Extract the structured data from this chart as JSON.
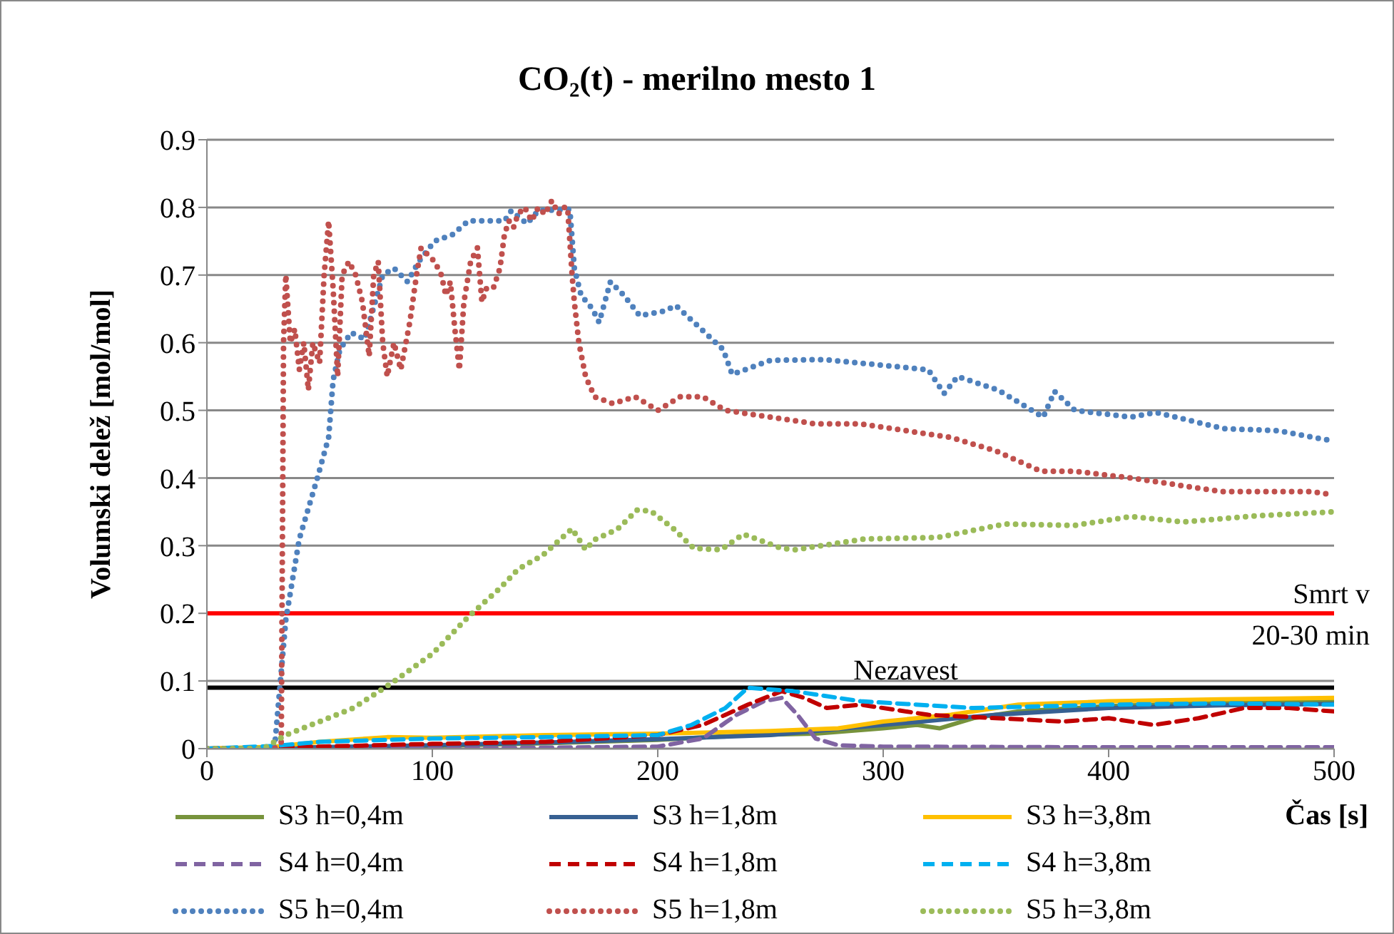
{
  "chart_data": {
    "type": "line",
    "title": "CO₂(t) - merilno mesto 1",
    "xlabel": "Čas [s]",
    "ylabel": "Volumski delež [mol/mol]",
    "xlim": [
      0,
      500
    ],
    "xticks": [
      0,
      100,
      200,
      300,
      400,
      500
    ],
    "ylim": [
      0,
      0.9
    ],
    "yticks": [
      0,
      0.1,
      0.2,
      0.3,
      0.4,
      0.5,
      0.6,
      0.7,
      0.8,
      0.9
    ],
    "grid": "y",
    "legend": "bottom",
    "marker": "none",
    "ref_lines": [
      {
        "axis": "y",
        "value": 0.2,
        "label": "Smrt v 20-30 min",
        "color": "#ff0000"
      },
      {
        "axis": "y",
        "value": 0.09,
        "label": "Nezavest",
        "color": "#000000"
      }
    ],
    "series": [
      {
        "name": "S3 h=0,4m",
        "color": "#77933c",
        "line_style": "solid",
        "x": [
          0,
          50,
          100,
          150,
          200,
          240,
          270,
          300,
          315,
          325,
          340,
          360,
          400,
          450,
          500
        ],
        "values": [
          0,
          0.002,
          0.004,
          0.008,
          0.013,
          0.02,
          0.022,
          0.03,
          0.035,
          0.03,
          0.045,
          0.055,
          0.063,
          0.068,
          0.07
        ]
      },
      {
        "name": "S3 h=1,8m",
        "color": "#376092",
        "line_style": "solid",
        "x": [
          0,
          50,
          100,
          150,
          200,
          250,
          300,
          350,
          400,
          450,
          500
        ],
        "values": [
          0,
          0.002,
          0.005,
          0.009,
          0.014,
          0.02,
          0.035,
          0.05,
          0.06,
          0.064,
          0.066
        ]
      },
      {
        "name": "S3 h=3,8m",
        "color": "#ffc000",
        "line_style": "solid",
        "x": [
          0,
          30,
          50,
          80,
          100,
          150,
          200,
          250,
          280,
          300,
          330,
          360,
          400,
          450,
          500
        ],
        "values": [
          0,
          0.003,
          0.01,
          0.017,
          0.016,
          0.02,
          0.022,
          0.026,
          0.03,
          0.04,
          0.05,
          0.065,
          0.07,
          0.073,
          0.075
        ]
      },
      {
        "name": "S4 h=0,4m",
        "color": "#8064a2",
        "line_style": "dashed",
        "x": [
          0,
          100,
          200,
          220,
          235,
          247,
          255,
          262,
          270,
          280,
          300,
          400,
          500
        ],
        "values": [
          0,
          0,
          0.003,
          0.015,
          0.05,
          0.07,
          0.075,
          0.05,
          0.015,
          0.005,
          0.003,
          0.002,
          0.002
        ]
      },
      {
        "name": "S4 h=1,8m",
        "color": "#c00000",
        "line_style": "dashed",
        "x": [
          0,
          50,
          100,
          150,
          200,
          220,
          240,
          255,
          265,
          275,
          290,
          320,
          350,
          380,
          400,
          420,
          440,
          460,
          480,
          500
        ],
        "values": [
          0,
          0.003,
          0.007,
          0.01,
          0.02,
          0.035,
          0.065,
          0.085,
          0.075,
          0.06,
          0.065,
          0.05,
          0.045,
          0.04,
          0.045,
          0.035,
          0.045,
          0.06,
          0.06,
          0.055
        ]
      },
      {
        "name": "S4 h=3,8m",
        "color": "#00b0f0",
        "line_style": "dashed",
        "x": [
          0,
          30,
          50,
          100,
          150,
          200,
          215,
          230,
          240,
          260,
          290,
          340,
          400,
          450,
          500
        ],
        "values": [
          0,
          0.004,
          0.01,
          0.015,
          0.017,
          0.02,
          0.035,
          0.06,
          0.09,
          0.085,
          0.07,
          0.06,
          0.065,
          0.067,
          0.065
        ]
      },
      {
        "name": "S5 h=0,4m",
        "color": "#4f81bd",
        "line_style": "dotted",
        "x": [
          0,
          30,
          35,
          41,
          49,
          54,
          56,
          59,
          64,
          70,
          78,
          83,
          89,
          94,
          101,
          109,
          116,
          132,
          135,
          142,
          147,
          161,
          163,
          166,
          171,
          174,
          179,
          185,
          192,
          203,
          208,
          229,
          233,
          250,
          274,
          320,
          327,
          333,
          351,
          371,
          376,
          385,
          410,
          421,
          451,
          475,
          494,
          500
        ],
        "values": [
          0,
          0,
          0.19,
          0.31,
          0.4,
          0.46,
          0.545,
          0.59,
          0.615,
          0.605,
          0.7,
          0.71,
          0.69,
          0.72,
          0.75,
          0.76,
          0.78,
          0.78,
          0.795,
          0.776,
          0.795,
          0.797,
          0.71,
          0.67,
          0.65,
          0.63,
          0.69,
          0.67,
          0.64,
          0.647,
          0.655,
          0.59,
          0.553,
          0.574,
          0.575,
          0.56,
          0.525,
          0.55,
          0.53,
          0.49,
          0.528,
          0.5,
          0.49,
          0.497,
          0.473,
          0.47,
          0.458,
          0.455
        ]
      },
      {
        "name": "S5 h=1,8m",
        "color": "#c0504d",
        "line_style": "dotted",
        "x": [
          0,
          20,
          30,
          33,
          34,
          35,
          37,
          39,
          41,
          43,
          45,
          47,
          50,
          52,
          54,
          56,
          58,
          60,
          63,
          66,
          69,
          72,
          74,
          76,
          78,
          80,
          83,
          86,
          90,
          93,
          95,
          98,
          101,
          104,
          106,
          108,
          110,
          112,
          114,
          117,
          120,
          122,
          124,
          127,
          130,
          132,
          134,
          136,
          138,
          141,
          144,
          147,
          150,
          153,
          156,
          158,
          160,
          161,
          162,
          163,
          165,
          168,
          172,
          180,
          190,
          200,
          210,
          220,
          230,
          250,
          270,
          290,
          310,
          330,
          350,
          370,
          385,
          410,
          430,
          450,
          470,
          490,
          500
        ],
        "values": [
          0,
          0,
          0,
          0.01,
          0.6,
          0.7,
          0.6,
          0.62,
          0.56,
          0.6,
          0.53,
          0.6,
          0.57,
          0.7,
          0.78,
          0.68,
          0.55,
          0.7,
          0.72,
          0.7,
          0.66,
          0.58,
          0.7,
          0.72,
          0.6,
          0.55,
          0.6,
          0.56,
          0.63,
          0.7,
          0.74,
          0.73,
          0.72,
          0.7,
          0.67,
          0.69,
          0.62,
          0.56,
          0.66,
          0.72,
          0.74,
          0.66,
          0.68,
          0.68,
          0.71,
          0.76,
          0.78,
          0.77,
          0.79,
          0.8,
          0.78,
          0.8,
          0.79,
          0.81,
          0.79,
          0.8,
          0.8,
          0.75,
          0.7,
          0.66,
          0.6,
          0.55,
          0.52,
          0.51,
          0.52,
          0.5,
          0.52,
          0.52,
          0.5,
          0.49,
          0.48,
          0.48,
          0.47,
          0.46,
          0.44,
          0.41,
          0.41,
          0.4,
          0.39,
          0.38,
          0.38,
          0.38,
          0.375
        ]
      },
      {
        "name": "S5 h=3,8m",
        "color": "#9bbb59",
        "line_style": "dotted",
        "x": [
          0,
          25,
          35,
          50,
          65,
          82,
          100,
          116,
          130,
          138,
          149,
          153,
          162,
          168,
          172,
          182,
          191,
          197,
          207,
          216,
          228,
          238,
          255,
          261,
          292,
          324,
          354,
          385,
          410,
          433,
          465,
          494,
          500
        ],
        "values": [
          0,
          0,
          0.02,
          0.04,
          0.06,
          0.097,
          0.14,
          0.195,
          0.237,
          0.265,
          0.286,
          0.298,
          0.325,
          0.294,
          0.309,
          0.324,
          0.353,
          0.351,
          0.325,
          0.296,
          0.294,
          0.317,
          0.296,
          0.294,
          0.31,
          0.312,
          0.332,
          0.33,
          0.343,
          0.335,
          0.344,
          0.349,
          0.35
        ]
      }
    ]
  }
}
